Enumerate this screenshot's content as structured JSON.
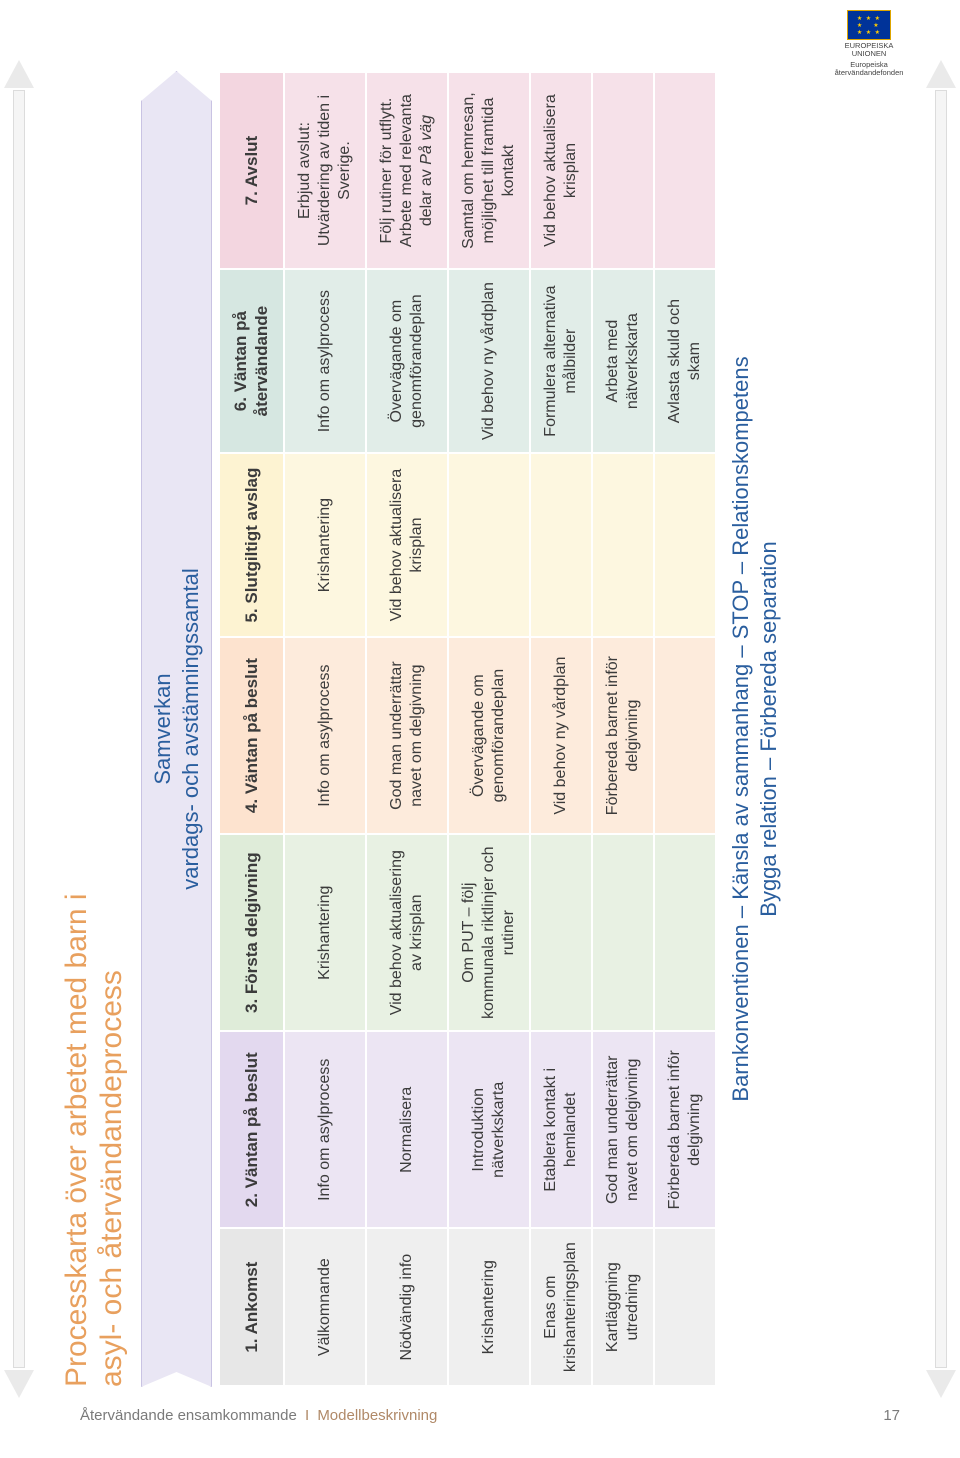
{
  "logo": {
    "title": "EUROPEISKA UNIONEN",
    "subtitle": "Europeiska återvändandefonden"
  },
  "title": {
    "line1": "Processkarta över arbetet med barn i",
    "line2": "asyl- och återvändandeprocess"
  },
  "samverkan": {
    "line1": "Samverkan",
    "line2": "vardags- och avstämningssamtal"
  },
  "barnkonv": {
    "line1": "Barnkonventionen – Känsla av sammanhang – STOP – Relationskompetens",
    "line2": "Bygga relation – Förbereda separation"
  },
  "footer": {
    "left": "Återvändande ensamkommande",
    "right": "Modellbeskrivning",
    "page": "17"
  },
  "col_widths_pct": [
    12,
    15,
    15,
    15,
    14,
    14,
    15
  ],
  "header_bg": [
    "#e7e7e7",
    "#e3d9ef",
    "#dfecd9",
    "#fde3cf",
    "#fdf3d2",
    "#d6e7e1",
    "#f3d6e0"
  ],
  "row_bg": [
    "#efefef",
    "#ece5f3",
    "#e8f1e3",
    "#fdebdc",
    "#fdf7e0",
    "#e1ede8",
    "#f6e1e9"
  ],
  "headers": [
    "1. Ankomst",
    "2. Väntan på beslut",
    "3. Första delgivning",
    "4. Väntan på beslut",
    "5. Slutgiltigt avslag",
    "6. Väntan på återvändande",
    "7. Avslut"
  ],
  "rows": [
    [
      "Välkomnande",
      "Info om asylprocess",
      "Krishantering",
      "Info om asylprocess",
      "Krishantering",
      "Info om asylprocess",
      "Erbjud avslut: Utvärdering av tiden i Sverige."
    ],
    [
      "Nödvändig info",
      "Normalisera",
      "Vid behov aktualisering av krisplan",
      "God man underrättar navet om delgivning",
      "Vid behov aktualisera krisplan",
      "Övervägande om genomförandeplan",
      "Följ rutiner för utflytt. Arbete med relevanta delar av På väg"
    ],
    [
      "Krishantering",
      "Introduktion nätverkskarta",
      "Om PUT – följ kommunala riktlinjer och rutiner",
      "Övervägande om genomförandeplan",
      "",
      "Vid behov ny vårdplan",
      "Samtal om hemresan, möjlighet till framtida kontakt"
    ],
    [
      "Enas om krishanteringsplan",
      "Etablera kontakt i hemlandet",
      "",
      "Vid behov ny vårdplan",
      "",
      "Formulera alternativa målbilder",
      "Vid behov aktualisera krisplan"
    ],
    [
      "Kartläggning utredning",
      "God man underrättar navet om delgivning",
      "",
      "Förbereda barnet inför delgivning",
      "",
      "Arbeta med nätverkskarta",
      ""
    ],
    [
      "",
      "Förbereda barnet inför delgivning",
      "",
      "",
      "",
      "Avlasta skuld och skam",
      ""
    ]
  ],
  "italic_phrase": "På väg",
  "colors": {
    "accent_text": "#2a5e9e",
    "title_color": "#e8a05e",
    "arrow_bg": "#e9e6f4",
    "arrow_border": "#c9c3e3"
  }
}
